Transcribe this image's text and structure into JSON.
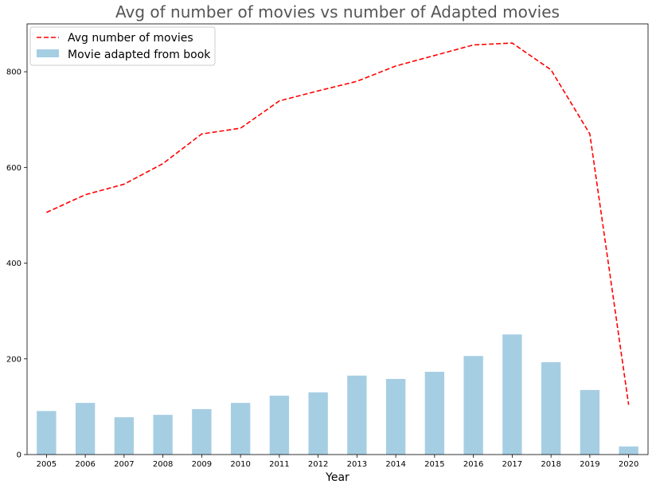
{
  "chart_data": {
    "type": "bar+line",
    "title": "Avg of number of movies vs number of Adapted movies",
    "xlabel": "Year",
    "ylabel": "",
    "ylim": [
      0,
      900
    ],
    "yticks": [
      0,
      200,
      400,
      600,
      800
    ],
    "categories": [
      "2005",
      "2006",
      "2007",
      "2008",
      "2009",
      "2010",
      "2011",
      "2012",
      "2013",
      "2014",
      "2015",
      "2016",
      "2017",
      "2018",
      "2019",
      "2020"
    ],
    "series": [
      {
        "name": "Avg number of movies",
        "kind": "line",
        "style": "dashed",
        "color": "#ff0000",
        "values": [
          506,
          543,
          565,
          608,
          670,
          682,
          739,
          760,
          780,
          812,
          834,
          856,
          860,
          804,
          670,
          104
        ]
      },
      {
        "name": "Movie adapted from book",
        "kind": "bar",
        "color": "#a6cee3",
        "values": [
          91,
          108,
          78,
          83,
          95,
          108,
          123,
          130,
          165,
          158,
          173,
          206,
          251,
          193,
          135,
          17
        ]
      }
    ],
    "legend_position": "top-left",
    "grid": false
  }
}
